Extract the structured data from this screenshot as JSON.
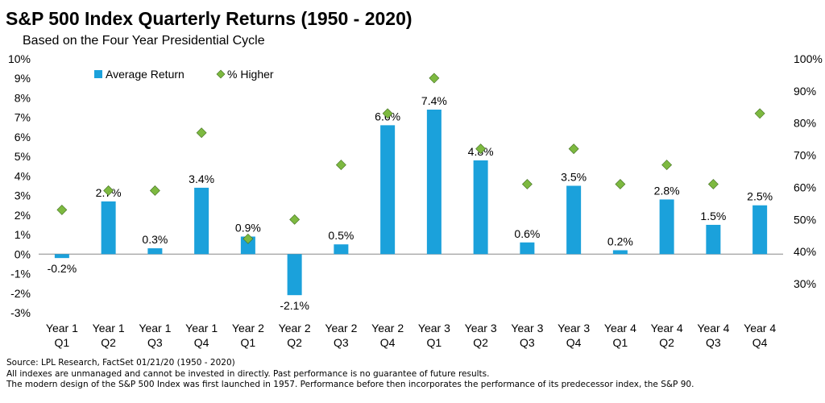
{
  "title": "S&P 500 Index Quarterly Returns (1950 - 2020)",
  "subtitle": "Based on the Four Year Presidential Cycle",
  "footnotes": [
    "Source: LPL Research, FactSet 01/21/20 (1950 - 2020)",
    "All indexes are unmanaged and cannot be invested in directly. Past performance is no guarantee of future results.",
    "The modern design of the S&P 500 Index was first launched in 1957. Performance before then incorporates the performance of its  predecessor index, the S&P 90."
  ],
  "chart_data": {
    "type": "bar",
    "title": "S&P 500 Index Quarterly Returns (1950 - 2020)",
    "subtitle": "Based on the Four Year Presidential Cycle",
    "categories": [
      [
        "Year 1",
        "Q1"
      ],
      [
        "Year 1",
        "Q2"
      ],
      [
        "Year 1",
        "Q3"
      ],
      [
        "Year 1",
        "Q4"
      ],
      [
        "Year 2",
        "Q1"
      ],
      [
        "Year 2",
        "Q2"
      ],
      [
        "Year 2",
        "Q3"
      ],
      [
        "Year 2",
        "Q4"
      ],
      [
        "Year 3",
        "Q1"
      ],
      [
        "Year 3",
        "Q2"
      ],
      [
        "Year 3",
        "Q3"
      ],
      [
        "Year 3",
        "Q4"
      ],
      [
        "Year 4",
        "Q1"
      ],
      [
        "Year 4",
        "Q2"
      ],
      [
        "Year 4",
        "Q3"
      ],
      [
        "Year 4",
        "Q4"
      ]
    ],
    "series": [
      {
        "name": "Average Return",
        "type": "bar",
        "axis": "left",
        "color": "#1BA1DB",
        "values": [
          -0.2,
          2.7,
          0.3,
          3.4,
          0.9,
          -2.1,
          0.5,
          6.6,
          7.4,
          4.8,
          0.6,
          3.5,
          0.2,
          2.8,
          1.5,
          2.5
        ],
        "labels": [
          "-0.2%",
          "2.7%",
          "0.3%",
          "3.4%",
          "0.9%",
          "-2.1%",
          "0.5%",
          "6.6%",
          "7.4%",
          "4.8%",
          "0.6%",
          "3.5%",
          "0.2%",
          "2.8%",
          "1.5%",
          "2.5%"
        ]
      },
      {
        "name": "% Higher",
        "type": "scatter",
        "marker": "diamond",
        "axis": "right",
        "color": "#7DB940",
        "values": [
          53,
          59,
          59,
          77,
          44,
          50,
          67,
          83,
          94,
          72,
          61,
          72,
          61,
          67,
          61,
          83
        ]
      }
    ],
    "y_left": {
      "min": -3,
      "max": 10,
      "step": 1,
      "ticks": [
        "-3%",
        "-2%",
        "-1%",
        "0%",
        "1%",
        "2%",
        "3%",
        "4%",
        "5%",
        "6%",
        "7%",
        "8%",
        "9%",
        "10%"
      ]
    },
    "y_right": {
      "min": 21,
      "max": 100,
      "ticks": [
        30,
        40,
        50,
        60,
        70,
        80,
        90,
        100
      ],
      "tick_labels": [
        "30%",
        "40%",
        "50%",
        "60%",
        "70%",
        "80%",
        "90%",
        "100%"
      ]
    },
    "legend": {
      "position": "top-left",
      "entries": [
        "Average Return",
        "% Higher"
      ]
    },
    "grid": false
  }
}
